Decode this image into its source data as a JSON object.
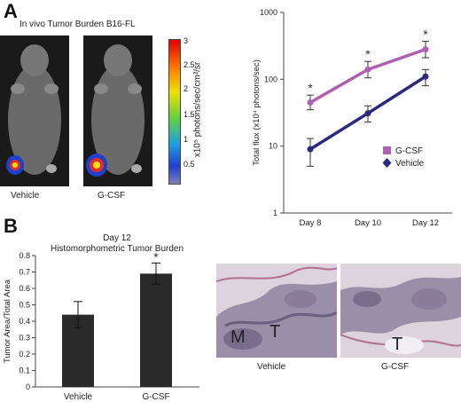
{
  "panel_a": {
    "letter": "A",
    "imaging_title": "In vivo Tumor Burden B16-FL",
    "mouse_labels": [
      "Vehicle",
      "G-CSF"
    ],
    "colorbar": {
      "ticks": [
        "3",
        "2.5",
        "2",
        "1.5",
        "1",
        "0.5"
      ],
      "unit_label": "x10⁵ photons/sec/cm²/sr"
    }
  },
  "panel_b": {
    "letter": "B",
    "histology_labels": [
      "Vehicle",
      "G-CSF"
    ],
    "histology_annotations": [
      "M",
      "T",
      "T"
    ]
  },
  "chart_data": [
    {
      "type": "line",
      "categories": [
        "Day 8",
        "Day 10",
        "Day 12"
      ],
      "ylabel": "Total flux (x10⁴ photons/sec)",
      "yscale": "log",
      "ylim": [
        1,
        1000
      ],
      "yticks": [
        "1000",
        "100",
        "10",
        "1"
      ],
      "series": [
        {
          "name": "G-CSF",
          "color": "#b060b0",
          "values": [
            45,
            140,
            280
          ],
          "err": [
            [
              35,
              58
            ],
            [
              105,
              185
            ],
            [
              210,
              370
            ]
          ]
        },
        {
          "name": "Vehicle",
          "color": "#2a2a80",
          "values": [
            9,
            31,
            110
          ],
          "err": [
            [
              5,
              13
            ],
            [
              23,
              40
            ],
            [
              80,
              140
            ]
          ]
        }
      ],
      "significance": [
        "*",
        "*",
        "*"
      ],
      "legend": "right"
    },
    {
      "type": "bar",
      "title": "Day 12 Histomorphometric Tumor Burden",
      "categories": [
        "Vehicle",
        "G-CSF"
      ],
      "values": [
        0.44,
        0.69
      ],
      "err": [
        0.08,
        0.065
      ],
      "ylabel": "Tumor Area/Total Area",
      "ylim": [
        0,
        0.8
      ],
      "yticks": [
        "0",
        "0.1",
        "0.2",
        "0.3",
        "0.4",
        "0.5",
        "0.6",
        "0.7",
        "0.8"
      ],
      "significance": [
        "",
        "*"
      ],
      "color": "#2a2a2a"
    }
  ]
}
